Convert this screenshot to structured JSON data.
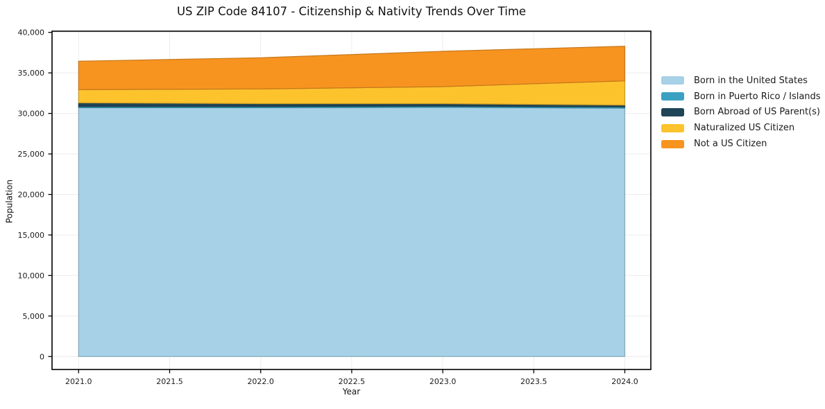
{
  "page": {
    "background": "#ffffff"
  },
  "chart_data": {
    "type": "area",
    "stacked": true,
    "title": "US ZIP Code 84107 - Citizenship & Nativity Trends Over Time",
    "xlabel": "Year",
    "ylabel": "Population",
    "x": [
      2021,
      2022,
      2023,
      2024
    ],
    "series": [
      {
        "name": "Born in the United States",
        "color": "#a6d1e6",
        "values": [
          30700,
          30700,
          30750,
          30650
        ]
      },
      {
        "name": "Born in Puerto Rico / Islands",
        "color": "#3ba1c2",
        "values": [
          160,
          160,
          160,
          160
        ]
      },
      {
        "name": "Born Abroad of US Parent(s)",
        "color": "#1f4557",
        "values": [
          450,
          350,
          300,
          220
        ]
      },
      {
        "name": "Naturalized US Citizen",
        "color": "#fcc32d",
        "values": [
          1620,
          1810,
          2090,
          2980
        ]
      },
      {
        "name": "Not a US Citizen",
        "color": "#f79420",
        "values": [
          3510,
          3850,
          4365,
          4280
        ]
      }
    ],
    "totals": [
      36440,
      36870,
      37665,
      38290
    ],
    "xticks": {
      "values": [
        2021.0,
        2021.5,
        2022.0,
        2022.5,
        2023.0,
        2023.5,
        2024.0
      ],
      "labels": [
        "2021.0",
        "2021.5",
        "2022.0",
        "2022.5",
        "2023.0",
        "2023.5",
        "2024.0"
      ]
    },
    "yticks": {
      "values": [
        0,
        5000,
        10000,
        15000,
        20000,
        25000,
        30000,
        35000,
        40000
      ],
      "labels": [
        "0",
        "5,000",
        "10,000",
        "15,000",
        "20,000",
        "25,000",
        "30,000",
        "35,000",
        "40,000"
      ]
    },
    "xlim": [
      2020.85,
      2024.15
    ],
    "ylim": [
      0,
      40000
    ],
    "grid": true,
    "legend_position": "right-outside"
  },
  "colors": {
    "grid": "#ececec",
    "spine": "#000000",
    "tick_text": "#1a1a1a"
  }
}
